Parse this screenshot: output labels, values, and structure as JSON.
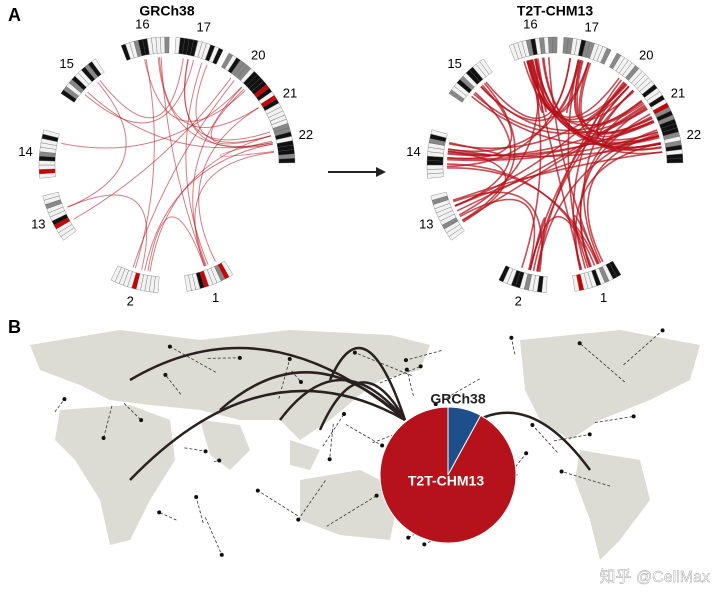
{
  "panels": [
    {
      "label": "A"
    },
    {
      "label": "B"
    }
  ],
  "circos": [
    {
      "title": "GRCh38",
      "chromosomes": [
        "16",
        "17",
        "20",
        "21",
        "22",
        "1",
        "2",
        "13",
        "14",
        "15"
      ]
    },
    {
      "title": "T2T-CHM13",
      "chromosomes": [
        "16",
        "17",
        "20",
        "21",
        "22",
        "1",
        "2",
        "13",
        "14",
        "15"
      ]
    }
  ],
  "pie": {
    "slices": [
      {
        "name": "GRCh38",
        "value": 8,
        "color": "#1f4e8c"
      },
      {
        "name": "T2T-CHM13",
        "value": 92,
        "color": "#b5121b"
      }
    ]
  },
  "watermark": "知乎 @CellMax"
}
